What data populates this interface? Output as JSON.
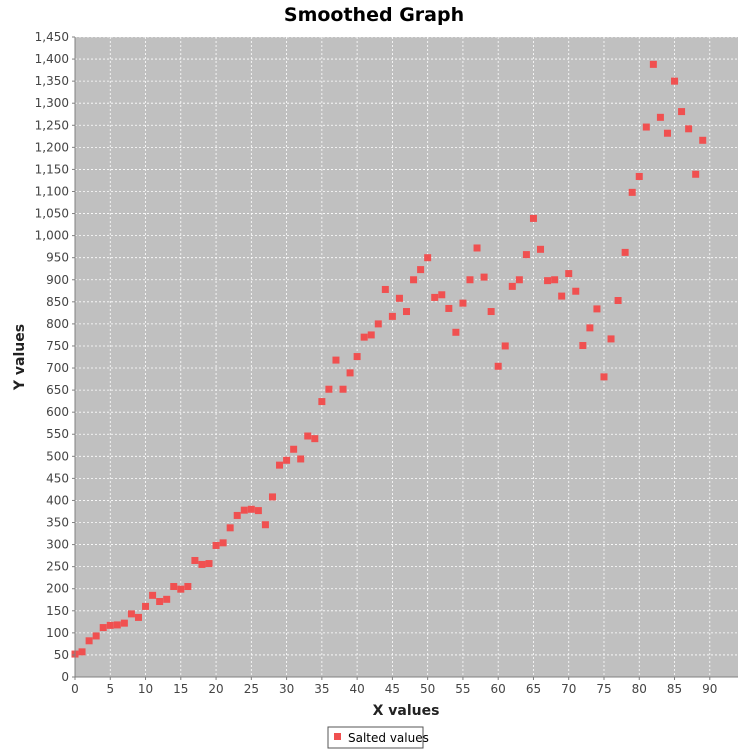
{
  "chart_data": {
    "type": "scatter",
    "title": "Smoothed Graph",
    "xlabel": "X values",
    "ylabel": "Y values",
    "xlim": [
      0,
      94
    ],
    "ylim": [
      0,
      1450
    ],
    "x_ticks": [
      0,
      5,
      10,
      15,
      20,
      25,
      30,
      35,
      40,
      45,
      50,
      55,
      60,
      65,
      70,
      75,
      80,
      85,
      90
    ],
    "x_tick_labels": [
      "0",
      "5",
      "10",
      "15",
      "20",
      "25",
      "30",
      "35",
      "40",
      "45",
      "50",
      "55",
      "60",
      "65",
      "70",
      "75",
      "80",
      "85",
      "90"
    ],
    "y_ticks": [
      0,
      50,
      100,
      150,
      200,
      250,
      300,
      350,
      400,
      450,
      500,
      550,
      600,
      650,
      700,
      750,
      800,
      850,
      900,
      950,
      1000,
      1050,
      1100,
      1150,
      1200,
      1250,
      1300,
      1350,
      1400,
      1450
    ],
    "y_tick_labels": [
      "0",
      "50",
      "100",
      "150",
      "200",
      "250",
      "300",
      "350",
      "400",
      "450",
      "500",
      "550",
      "600",
      "650",
      "700",
      "750",
      "800",
      "850",
      "900",
      "950",
      "1,000",
      "1,050",
      "1,100",
      "1,150",
      "1,200",
      "1,250",
      "1,300",
      "1,350",
      "1,400",
      "1,450"
    ],
    "grid": true,
    "legend_position": "bottom-center",
    "series": [
      {
        "name": "Salted values",
        "color": "#f05050",
        "x": [
          0,
          1,
          2,
          3,
          4,
          5,
          6,
          7,
          8,
          9,
          10,
          11,
          12,
          13,
          14,
          15,
          16,
          17,
          18,
          19,
          20,
          21,
          22,
          23,
          24,
          25,
          26,
          27,
          28,
          29,
          30,
          31,
          32,
          33,
          34,
          35,
          36,
          37,
          38,
          39,
          40,
          41,
          42,
          43,
          44,
          45,
          46,
          47,
          48,
          49,
          50,
          51,
          52,
          53,
          54,
          55,
          56,
          57,
          58,
          59,
          60,
          61,
          62,
          63,
          64,
          65,
          66,
          67,
          68,
          69,
          70,
          71,
          72,
          73,
          74,
          75,
          76,
          77,
          78,
          79,
          80,
          81,
          82,
          83,
          84,
          85,
          86,
          87,
          88,
          89
        ],
        "y": [
          52,
          57,
          82,
          93,
          112,
          117,
          118,
          122,
          143,
          135,
          160,
          185,
          171,
          176,
          205,
          199,
          205,
          264,
          255,
          257,
          298,
          304,
          338,
          366,
          378,
          380,
          377,
          345,
          408,
          480,
          491,
          516,
          494,
          546,
          540,
          624,
          652,
          718,
          652,
          689,
          726,
          770,
          775,
          800,
          878,
          817,
          858,
          828,
          900,
          923,
          950,
          860,
          866,
          835,
          781,
          847,
          900,
          972,
          906,
          828,
          704,
          750,
          885,
          900,
          957,
          1039,
          969,
          898,
          900,
          863,
          914,
          874,
          751,
          791,
          834,
          680,
          766,
          853,
          962,
          1098,
          1134,
          1246,
          1388,
          1268,
          1232,
          1350,
          1281,
          1242,
          1139,
          1216
        ]
      }
    ]
  }
}
